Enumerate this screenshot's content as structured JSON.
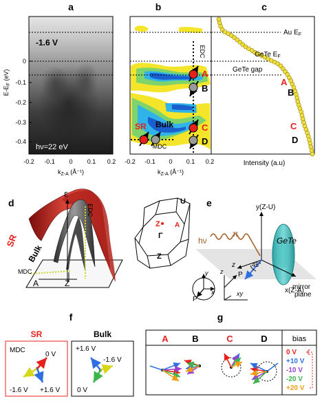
{
  "panel_labels": {
    "a": "a",
    "b": "b",
    "c": "c",
    "d": "d",
    "e": "e",
    "f": "f",
    "g": "g"
  },
  "y_axis_label": "E-E",
  "y_axis_sub": "F",
  "y_axis_unit": " (eV)",
  "y_ticks": [
    "0",
    "-0.1",
    "-0.2",
    "-0.3",
    "-0.4"
  ],
  "x_ticks": [
    "-0.2",
    "-0.1",
    "0",
    "0.1",
    "0.2"
  ],
  "x_axis_label": "k",
  "x_axis_sub": "Z-A",
  "x_axis_unit": " (Å⁻¹)",
  "panel_a": {
    "bias": "-1.6 V",
    "photon": "hν=22 eV"
  },
  "panel_b": {
    "edc": "EDC",
    "mdc": "MDC",
    "sr": "SR",
    "bulk": "Bulk",
    "points": [
      "A",
      "B",
      "C",
      "D"
    ]
  },
  "panel_c": {
    "au_ef": "Au E",
    "au_sub": "F",
    "gete_ef": "GeTe E",
    "gete_sub": "F",
    "gap": "GeTe gap",
    "points": [
      "A",
      "B",
      "C",
      "D"
    ],
    "xlabel": "Intensity (a.u)"
  },
  "panel_d": {
    "eps": "ε",
    "edc": "EDC",
    "sr": "SR",
    "bulk": "Bulk",
    "mdc": "MDC",
    "A": "A",
    "Z": "Z"
  },
  "panel_e": {
    "U": "U",
    "Z": "Z",
    "A": "A",
    "Gamma": "Γ",
    "Zb": "Z",
    "hv": "hν",
    "pi": "π",
    "gete": "GeTe",
    "yaxis": "y(Z-U)",
    "xaxis": "x(Z-A)",
    "z": "z",
    "angle": "45°",
    "mirror": "mirror",
    "plane": "plane",
    "y": "y",
    "x": "x",
    "P1": "P",
    "zz": "z",
    "P2": "P",
    "xy": "xy"
  },
  "panel_f": {
    "sr_title": "SR",
    "bulk_title": "Bulk",
    "mdc": "MDC",
    "sr_labels": [
      "0 V",
      "-1.6 V",
      "+1.6 V"
    ],
    "bulk_labels": [
      "+1.6 V",
      "-1.6 V",
      "0 V"
    ]
  },
  "panel_g": {
    "cols": [
      "A",
      "B",
      "C",
      "D"
    ],
    "bias_title": "bias",
    "bias": [
      "0 V",
      "+10 V",
      "-10 V",
      "-20 V",
      "+20 V"
    ]
  },
  "colors": {
    "red": "#e8201c",
    "blue": "#2f6fe0",
    "violet": "#9a3fd0",
    "green": "#3cb54a",
    "orange": "#f39c12",
    "yellow": "#d6d61a"
  },
  "chart_data": [
    {
      "type": "line",
      "xlabel": "Intensity (a.u)",
      "ylabel": "E-EF (eV)",
      "ylim": [
        -0.46,
        0.12
      ],
      "annotations": [
        "Au EF",
        "GeTe EF",
        "GeTe gap",
        "A",
        "B",
        "C",
        "D"
      ]
    }
  ]
}
